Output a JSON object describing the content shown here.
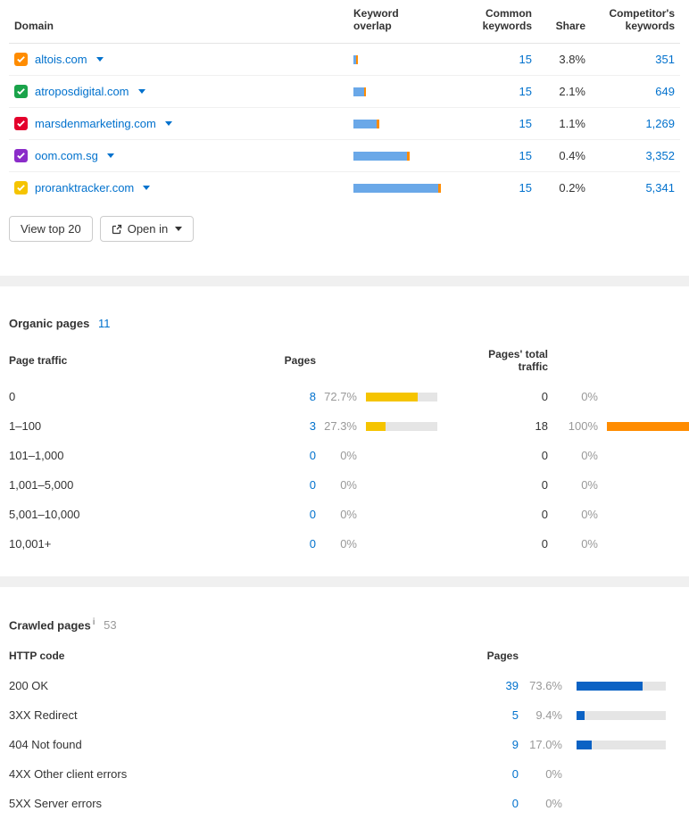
{
  "competitors": {
    "headers": {
      "domain": "Domain",
      "overlap": "Keyword\noverlap",
      "common": "Common\nkeywords",
      "share": "Share",
      "comp_kw": "Competitor's\nkeywords"
    },
    "rows": [
      {
        "color": "#ff8c00",
        "domain": "altois.com",
        "overlap_segments": [
          [
            "#6aa8e8",
            3
          ],
          [
            "#ff8c00",
            2
          ]
        ],
        "common": "15",
        "share": "3.8%",
        "comp_kw": "351"
      },
      {
        "color": "#1aa34a",
        "domain": "atroposdigital.com",
        "overlap_segments": [
          [
            "#6aa8e8",
            12
          ],
          [
            "#ff8c00",
            2
          ]
        ],
        "common": "15",
        "share": "2.1%",
        "comp_kw": "649"
      },
      {
        "color": "#e4002b",
        "domain": "marsdenmarketing.com",
        "overlap_segments": [
          [
            "#6aa8e8",
            26
          ],
          [
            "#ff8c00",
            3
          ]
        ],
        "common": "15",
        "share": "1.1%",
        "comp_kw": "1,269"
      },
      {
        "color": "#8b2cc9",
        "domain": "oom.com.sg",
        "overlap_segments": [
          [
            "#6aa8e8",
            60
          ],
          [
            "#ff8c00",
            3
          ]
        ],
        "common": "15",
        "share": "0.4%",
        "comp_kw": "3,352"
      },
      {
        "color": "#f5c400",
        "domain": "proranktracker.com",
        "overlap_segments": [
          [
            "#6aa8e8",
            95
          ],
          [
            "#ff8c00",
            3
          ]
        ],
        "common": "15",
        "share": "0.2%",
        "comp_kw": "5,341"
      }
    ],
    "buttons": {
      "view_top": "View top 20",
      "open_in": "Open in"
    }
  },
  "organic": {
    "title": "Organic pages",
    "count": "11",
    "headers": {
      "traffic": "Page traffic",
      "pages": "Pages",
      "total": "Pages' total traffic"
    },
    "bar_colors": {
      "pages_fill": "#f5c400",
      "traffic_fill": "#ff8c00",
      "track": "#e5e5e5"
    },
    "rows": [
      {
        "label": "0",
        "pages": "8",
        "pages_pct": "72.7%",
        "pages_bar": 72.7,
        "traffic": "0",
        "traffic_pct": "0%",
        "traffic_bar": 0
      },
      {
        "label": "1–100",
        "pages": "3",
        "pages_pct": "27.3%",
        "pages_bar": 27.3,
        "traffic": "18",
        "traffic_pct": "100%",
        "traffic_bar": 100
      },
      {
        "label": "101–1,000",
        "pages": "0",
        "pages_pct": "0%",
        "pages_bar": 0,
        "traffic": "0",
        "traffic_pct": "0%",
        "traffic_bar": 0
      },
      {
        "label": "1,001–5,000",
        "pages": "0",
        "pages_pct": "0%",
        "pages_bar": 0,
        "traffic": "0",
        "traffic_pct": "0%",
        "traffic_bar": 0
      },
      {
        "label": "5,001–10,000",
        "pages": "0",
        "pages_pct": "0%",
        "pages_bar": 0,
        "traffic": "0",
        "traffic_pct": "0%",
        "traffic_bar": 0
      },
      {
        "label": "10,001+",
        "pages": "0",
        "pages_pct": "0%",
        "pages_bar": 0,
        "traffic": "0",
        "traffic_pct": "0%",
        "traffic_bar": 0
      }
    ]
  },
  "crawled": {
    "title": "Crawled pages",
    "count": "53",
    "headers": {
      "code": "HTTP code",
      "pages": "Pages"
    },
    "bar_colors": {
      "fill": "#0b62c4",
      "track": "#e5e5e5"
    },
    "rows": [
      {
        "label": "200 OK",
        "pages": "39",
        "pct": "73.6%",
        "bar": 73.6
      },
      {
        "label": "3XX Redirect",
        "pages": "5",
        "pct": "9.4%",
        "bar": 9.4
      },
      {
        "label": "404 Not found",
        "pages": "9",
        "pct": "17.0%",
        "bar": 17.0
      },
      {
        "label": "4XX Other client errors",
        "pages": "0",
        "pct": "0%",
        "bar": 0
      },
      {
        "label": "5XX Server errors",
        "pages": "0",
        "pct": "0%",
        "bar": 0
      }
    ]
  }
}
